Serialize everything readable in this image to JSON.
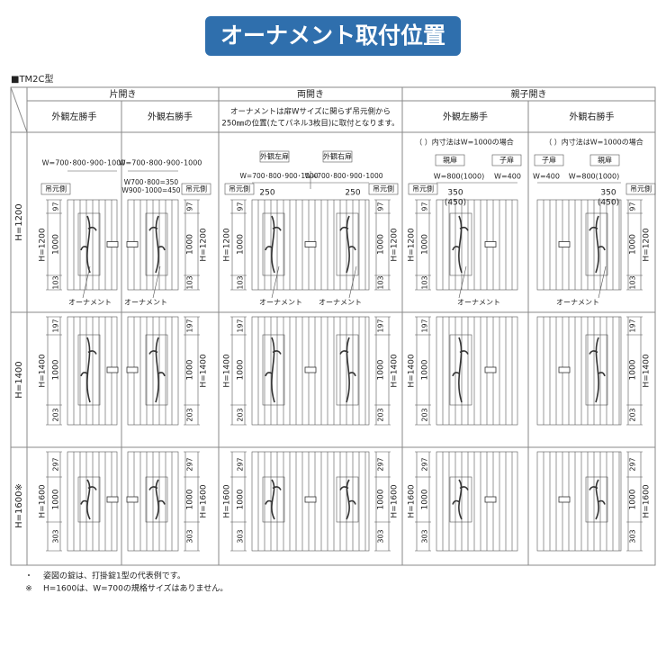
{
  "title": "オーナメント取付位置",
  "model": "■TM2C型",
  "groups": [
    "片開き",
    "両開き",
    "親子開き"
  ],
  "columns": [
    "外観左勝手",
    "外観右勝手",
    "外観左勝手",
    "外観右勝手"
  ],
  "double_note": [
    "オーナメントは扉Wサイズに関らず吊元側から",
    "250㎜の位置(たてパネル3枚目)に取付となります。"
  ],
  "rows": [
    {
      "label": "H=1200",
      "height": "H=1200",
      "top": "97",
      "middle": "1000",
      "bottom": "103"
    },
    {
      "label": "H=1400",
      "height": "H=1400",
      "top": "197",
      "middle": "1000",
      "bottom": "203"
    },
    {
      "label": "H=1600※",
      "height": "H=1600",
      "top": "297",
      "middle": "1000",
      "bottom": "303"
    }
  ],
  "annotations": {
    "width_all": "W=700･800･900･1000",
    "hinge": "吊元側",
    "ornament": "オーナメント",
    "right_offsets": [
      "W700･800=350",
      "W900･1000=450"
    ],
    "left_door": "外観左扉",
    "right_door": "外観右扉",
    "offset_250": "250",
    "paren_note": "（ ）内寸法はW=1000の場合",
    "parent": "親扉",
    "child": "子扉",
    "parent_width": "W=800(1000)",
    "child_width": "W=400",
    "offset": "350",
    "offset_paren": "(450)"
  },
  "notes": [
    {
      "mark": "・",
      "text": "姿図の錠は、打掛錠1型の代表例です。"
    },
    {
      "mark": "※",
      "text": "H=1600は、W=700の規格サイズはありません。"
    }
  ]
}
